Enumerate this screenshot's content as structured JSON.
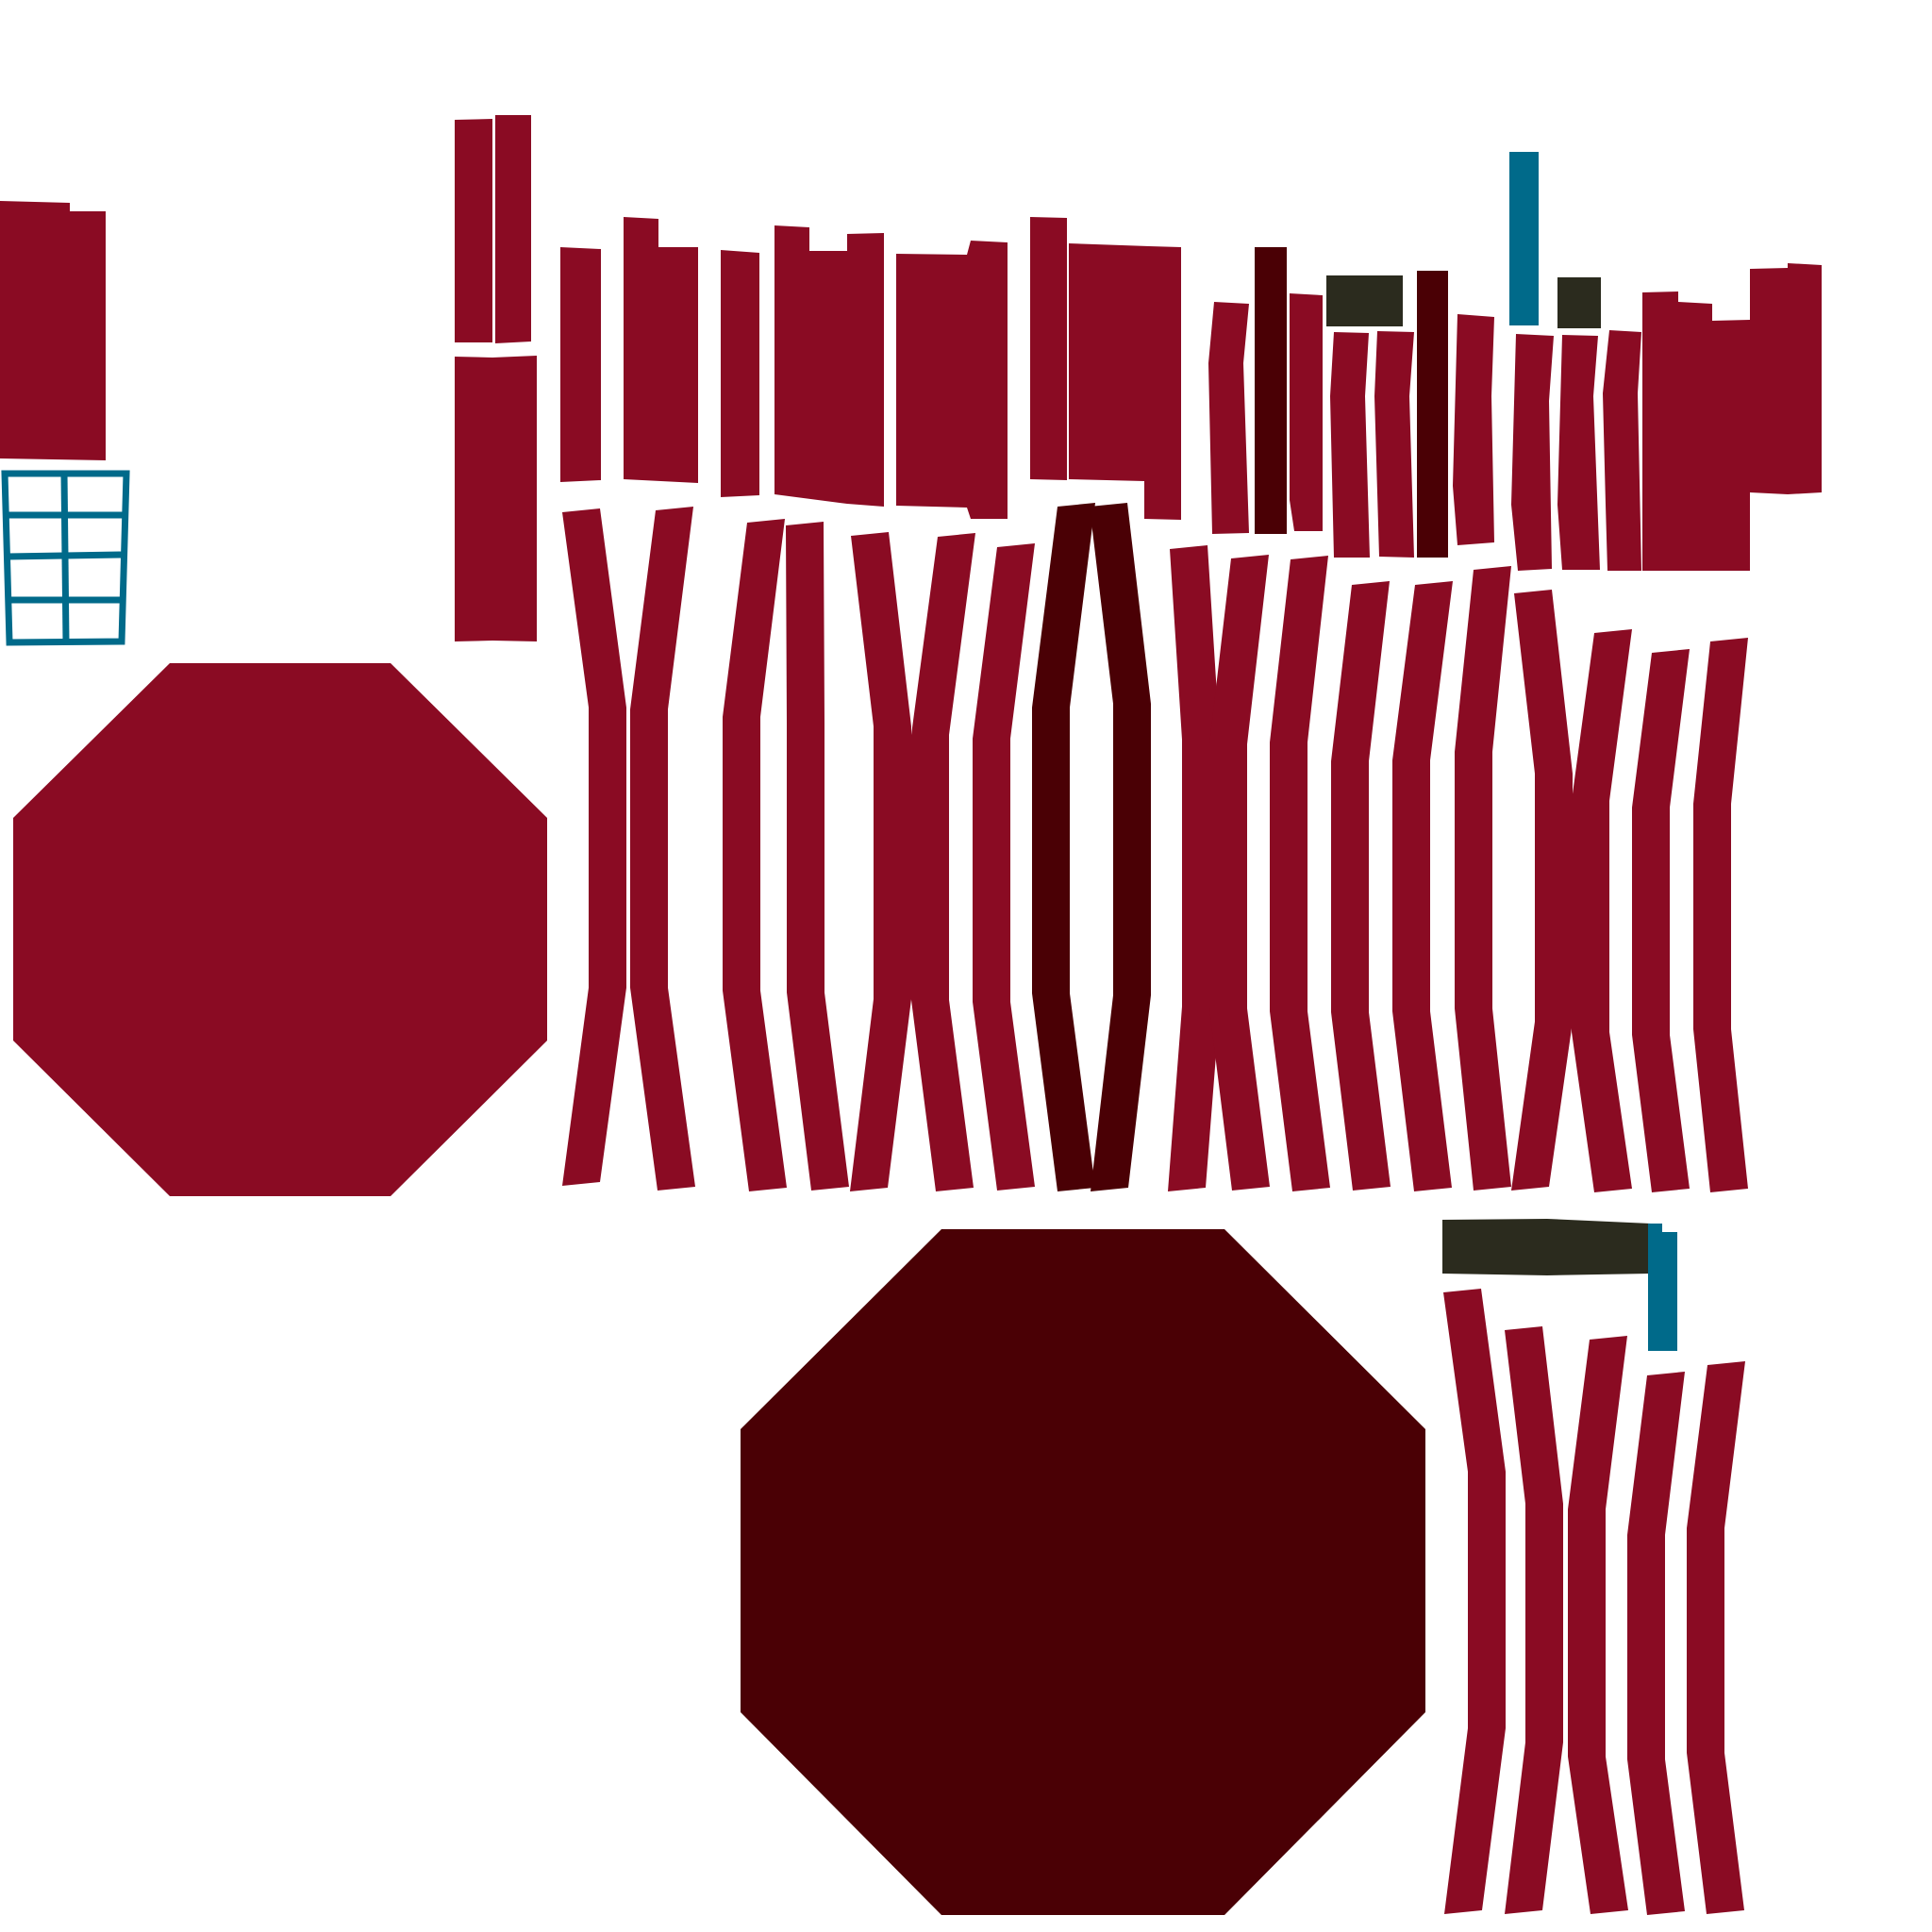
{
  "colors": {
    "background": "#ffffff",
    "crimson": "#8a0b23",
    "dark_maroon": "#4a0005",
    "olive_dark": "#2b2b1e",
    "teal": "#006a8a"
  },
  "groups": [
    "top-left-panel",
    "window-grid",
    "upper-plank-row",
    "lower-stave-row",
    "octagon-crimson",
    "octagon-maroon",
    "bottom-right-staves"
  ]
}
